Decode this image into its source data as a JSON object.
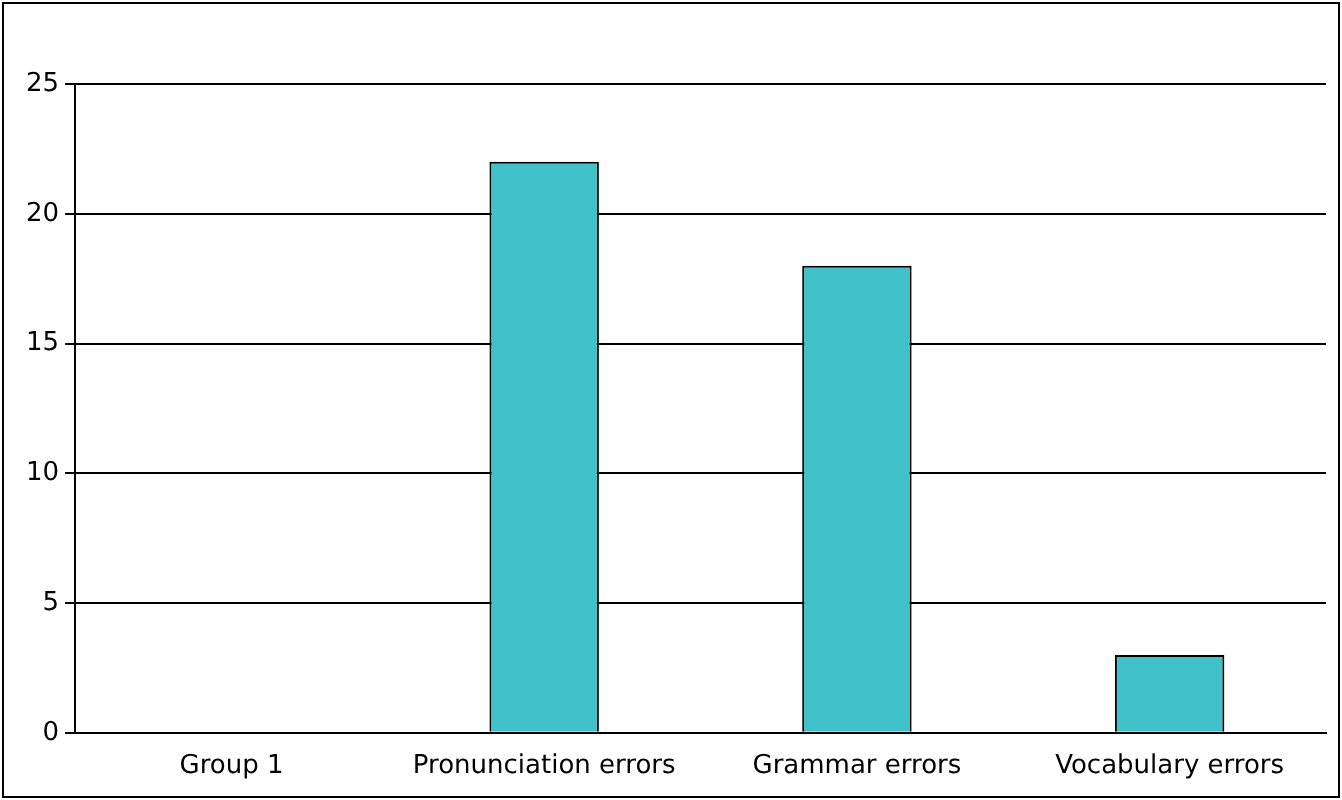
{
  "chart_data": {
    "type": "bar",
    "categories": [
      "Group 1",
      "Pronunciation errors",
      "Grammar errors",
      "Vocabulary errors"
    ],
    "values": [
      0,
      22,
      18,
      3
    ],
    "color": "#40c0c8",
    "ylim": [
      0,
      25
    ],
    "yticks": [
      0,
      5,
      10,
      15,
      20,
      25
    ],
    "grid": "y",
    "legend": false
  }
}
